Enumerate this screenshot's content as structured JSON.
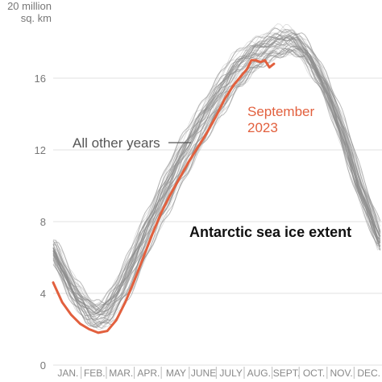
{
  "chart_data": {
    "type": "line",
    "title": "Antarctic sea ice extent",
    "ylabel_line1": "20 million",
    "ylabel_line2": "sq. km",
    "ylim": [
      0,
      20
    ],
    "yticks": [
      0,
      4,
      8,
      12,
      16
    ],
    "xlim": [
      0,
      365
    ],
    "months": [
      {
        "label": "JAN.",
        "day": 0
      },
      {
        "label": "FEB.",
        "day": 31
      },
      {
        "label": "MAR.",
        "day": 59
      },
      {
        "label": "APR.",
        "day": 90
      },
      {
        "label": "MAY",
        "day": 120
      },
      {
        "label": "JUNE",
        "day": 151
      },
      {
        "label": "JULY",
        "day": 181
      },
      {
        "label": "AUG.",
        "day": 212
      },
      {
        "label": "SEPT.",
        "day": 243
      },
      {
        "label": "OCT.",
        "day": 273
      },
      {
        "label": "NOV.",
        "day": 304
      },
      {
        "label": "DEC.",
        "day": 334
      }
    ],
    "grid": true,
    "annotations": {
      "other_years": "All other years",
      "year_2023_line1": "September",
      "year_2023_line2": "2023"
    },
    "colors": {
      "other_years": "#8c8c8c",
      "year_2023": "#e2603e",
      "grid": "#e2e2e2",
      "axis_text": "#777777"
    },
    "other_years_typical": {
      "x": [
        0,
        20,
        40,
        50,
        60,
        80,
        100,
        120,
        140,
        160,
        180,
        200,
        220,
        240,
        250,
        260,
        270,
        280,
        300,
        320,
        340,
        365
      ],
      "y": [
        6.6,
        4.4,
        3.0,
        2.8,
        3.0,
        4.6,
        6.9,
        9.1,
        11.2,
        13.0,
        14.7,
        16.2,
        17.2,
        17.8,
        18.0,
        18.1,
        18.0,
        17.6,
        15.9,
        13.3,
        10.1,
        6.8
      ]
    },
    "series": [
      {
        "name": "September 2023",
        "x": [
          0,
          10,
          20,
          30,
          40,
          50,
          60,
          70,
          80,
          90,
          100,
          110,
          120,
          130,
          140,
          150,
          160,
          170,
          180,
          190,
          200,
          210,
          215,
          220,
          225,
          230,
          235,
          240,
          245
        ],
        "y": [
          4.6,
          3.5,
          2.8,
          2.3,
          2.0,
          1.8,
          1.9,
          2.5,
          3.5,
          4.7,
          6.0,
          7.3,
          8.5,
          9.5,
          10.4,
          11.3,
          12.1,
          12.9,
          13.8,
          14.8,
          15.6,
          16.2,
          16.5,
          17.0,
          17.0,
          16.9,
          17.0,
          16.6,
          16.8
        ]
      }
    ]
  }
}
